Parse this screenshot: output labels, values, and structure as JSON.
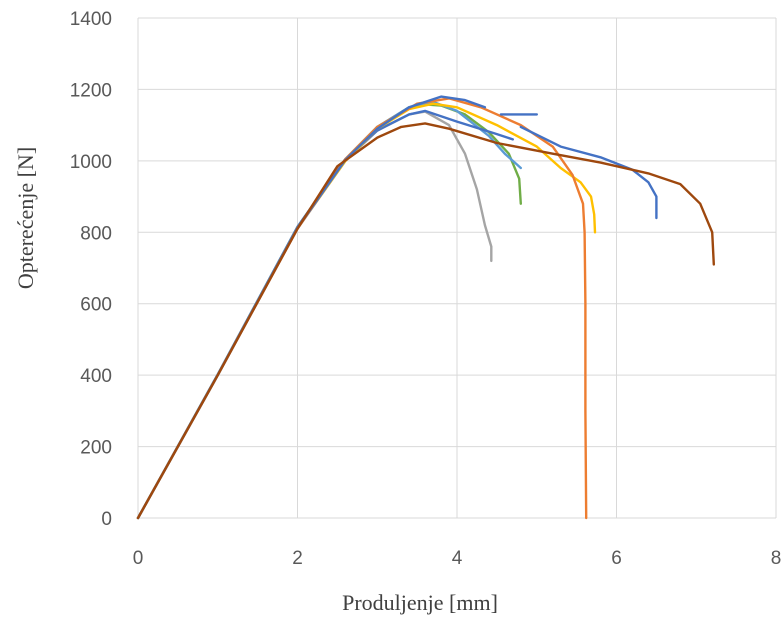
{
  "chart_data": {
    "type": "line",
    "title": "",
    "xlabel": "Produljenje [mm]",
    "ylabel": "Opterećenje [N]",
    "xlim": [
      0,
      8
    ],
    "ylim": [
      0,
      1400
    ],
    "x_ticks": [
      "0",
      "2",
      "4",
      "6",
      "8"
    ],
    "y_ticks": [
      "0",
      "200",
      "400",
      "600",
      "800",
      "1000",
      "1200",
      "1400"
    ],
    "grid": true,
    "legend": "none",
    "series": [
      {
        "color": "#a5a5a5",
        "points": [
          [
            0,
            0
          ],
          [
            1,
            400
          ],
          [
            2,
            810
          ],
          [
            2.6,
            1000
          ],
          [
            3,
            1085
          ],
          [
            3.4,
            1130
          ],
          [
            3.6,
            1138
          ],
          [
            3.9,
            1100
          ],
          [
            4.1,
            1020
          ],
          [
            4.25,
            920
          ],
          [
            4.35,
            820
          ],
          [
            4.43,
            760
          ],
          [
            4.43,
            720
          ]
        ]
      },
      {
        "color": "#70ad47",
        "points": [
          [
            0,
            0
          ],
          [
            1,
            402
          ],
          [
            2,
            815
          ],
          [
            2.6,
            1005
          ],
          [
            3,
            1095
          ],
          [
            3.4,
            1150
          ],
          [
            3.6,
            1158
          ],
          [
            3.8,
            1155
          ],
          [
            4.1,
            1130
          ],
          [
            4.4,
            1080
          ],
          [
            4.65,
            1020
          ],
          [
            4.78,
            950
          ],
          [
            4.8,
            880
          ]
        ]
      },
      {
        "color": "#5b9bd5",
        "points": [
          [
            0,
            0
          ],
          [
            1,
            402
          ],
          [
            2,
            815
          ],
          [
            2.6,
            1005
          ],
          [
            3,
            1095
          ],
          [
            3.4,
            1150
          ],
          [
            3.7,
            1165
          ],
          [
            4,
            1140
          ],
          [
            4.4,
            1070
          ],
          [
            4.6,
            1020
          ],
          [
            4.75,
            990
          ],
          [
            4.8,
            980
          ]
        ]
      },
      {
        "color": "#4472c4",
        "points": [
          [
            0,
            0
          ],
          [
            1,
            402
          ],
          [
            2,
            815
          ],
          [
            2.6,
            1005
          ],
          [
            3,
            1085
          ],
          [
            3.4,
            1130
          ],
          [
            3.6,
            1140
          ],
          [
            4,
            1110
          ],
          [
            4.5,
            1075
          ],
          [
            4.7,
            1060
          ]
        ]
      },
      {
        "color": "#ffc000",
        "points": [
          [
            0,
            0
          ],
          [
            1,
            400
          ],
          [
            2,
            812
          ],
          [
            2.6,
            1000
          ],
          [
            3,
            1090
          ],
          [
            3.4,
            1145
          ],
          [
            3.7,
            1160
          ],
          [
            4,
            1150
          ],
          [
            4.5,
            1100
          ],
          [
            5,
            1040
          ],
          [
            5.3,
            980
          ],
          [
            5.55,
            940
          ],
          [
            5.68,
            900
          ],
          [
            5.72,
            850
          ],
          [
            5.73,
            800
          ]
        ]
      },
      {
        "color": "#ed7d31",
        "points": [
          [
            0,
            0
          ],
          [
            1,
            400
          ],
          [
            2,
            810
          ],
          [
            2.6,
            1005
          ],
          [
            3,
            1095
          ],
          [
            3.5,
            1160
          ],
          [
            3.9,
            1175
          ],
          [
            4.3,
            1150
          ],
          [
            4.8,
            1100
          ],
          [
            5.2,
            1040
          ],
          [
            5.45,
            960
          ],
          [
            5.58,
            880
          ],
          [
            5.6,
            800
          ],
          [
            5.61,
            600
          ],
          [
            5.61,
            300
          ],
          [
            5.62,
            0
          ]
        ]
      },
      {
        "color": "#4472c4",
        "points": [
          [
            0,
            0
          ],
          [
            1,
            400
          ],
          [
            2,
            812
          ],
          [
            2.6,
            1003
          ],
          [
            3,
            1090
          ],
          [
            3.4,
            1150
          ],
          [
            3.8,
            1180
          ],
          [
            4.1,
            1170
          ],
          [
            4.35,
            1150
          ]
        ]
      },
      {
        "color": "#4472c4",
        "points": [
          [
            4.55,
            1130
          ],
          [
            5,
            1130
          ]
        ]
      },
      {
        "color": "#4472c4",
        "points": [
          [
            4.8,
            1095
          ],
          [
            5.3,
            1040
          ],
          [
            5.8,
            1010
          ],
          [
            6.2,
            975
          ],
          [
            6.4,
            940
          ],
          [
            6.5,
            900
          ],
          [
            6.5,
            840
          ]
        ]
      },
      {
        "color": "#9e480e",
        "points": [
          [
            0,
            0
          ],
          [
            1,
            400
          ],
          [
            2,
            810
          ],
          [
            2.5,
            985
          ],
          [
            3,
            1065
          ],
          [
            3.3,
            1095
          ],
          [
            3.6,
            1105
          ],
          [
            3.9,
            1090
          ],
          [
            4.5,
            1050
          ],
          [
            5.2,
            1020
          ],
          [
            5.8,
            995
          ],
          [
            6.4,
            965
          ],
          [
            6.8,
            935
          ],
          [
            7.05,
            880
          ],
          [
            7.2,
            800
          ],
          [
            7.22,
            710
          ]
        ]
      }
    ]
  }
}
